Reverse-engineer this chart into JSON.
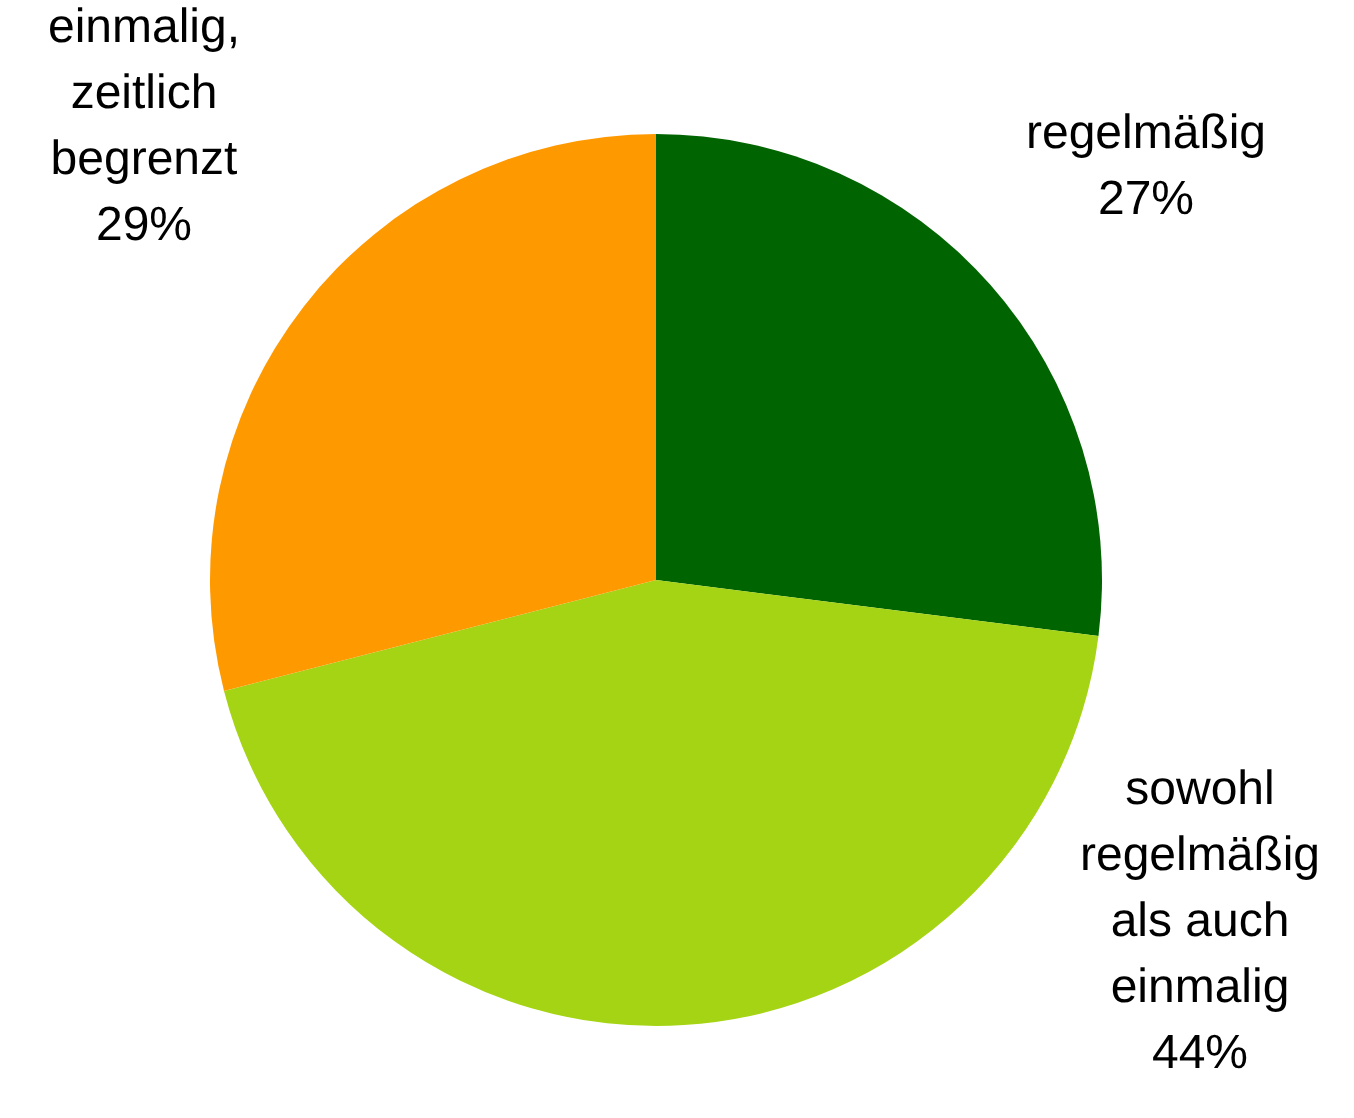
{
  "chart_data": {
    "type": "pie",
    "categories": [
      "regelmäßig",
      "sowohl\nregelmäßig\nals auch\neinmalig",
      "einmalig,\nzeitlich\nbegrenzt"
    ],
    "values": [
      27,
      44,
      29
    ],
    "colors": [
      "#006400",
      "#a5d414",
      "#ff9900"
    ],
    "value_labels": [
      "27%",
      "44%",
      "29%"
    ]
  }
}
